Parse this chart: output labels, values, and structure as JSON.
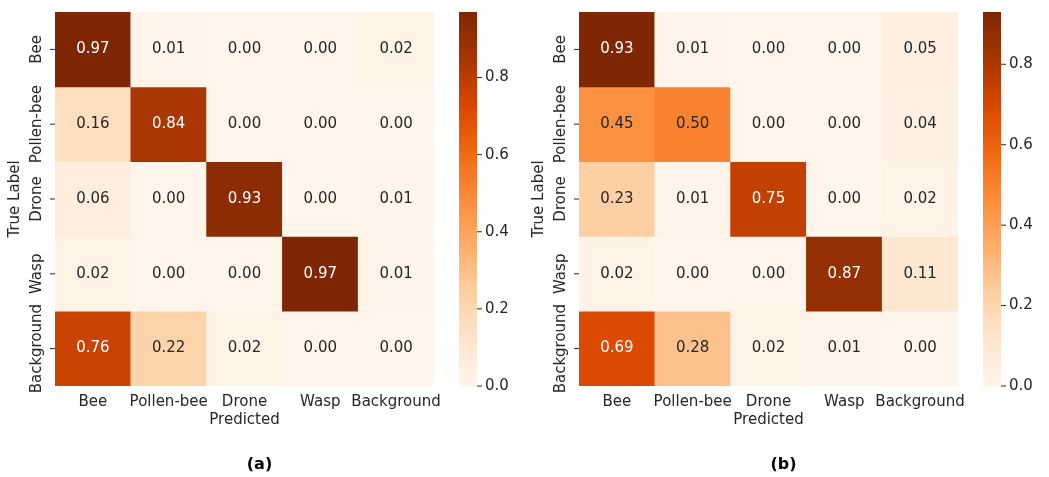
{
  "chart_data": [
    {
      "type": "heatmap",
      "xlabel": "Predicted",
      "ylabel": "True Label",
      "annotations": [
        "(a)"
      ],
      "categories": [
        "Bee",
        "Pollen-bee",
        "Drone",
        "Wasp",
        "Background"
      ],
      "y_categories": [
        "Bee",
        "Pollen-bee",
        "Drone",
        "Wasp",
        "Background"
      ],
      "cells": [
        [
          0.97,
          0.01,
          0,
          0,
          0.02
        ],
        [
          0.16,
          0.84,
          0,
          0,
          0
        ],
        [
          0.06,
          0,
          0.93,
          0,
          0.01
        ],
        [
          0.02,
          0,
          0,
          0.97,
          0.01
        ],
        [
          0.76,
          0.22,
          0.02,
          0,
          0
        ]
      ],
      "cell_labels": [
        [
          "0.97",
          "0.01",
          "0.00",
          "0.00",
          "0.02"
        ],
        [
          "0.16",
          "0.84",
          "0.00",
          "0.00",
          "0.00"
        ],
        [
          "0.06",
          "0.00",
          "0.93",
          "0.00",
          "0.01"
        ],
        [
          "0.02",
          "0.00",
          "0.00",
          "0.97",
          "0.01"
        ],
        [
          "0.76",
          "0.22",
          "0.02",
          "0.00",
          "0.00"
        ]
      ],
      "clim": [
        0,
        0.97
      ],
      "cticks": [
        {
          "value": 0,
          "label": "0.0"
        },
        0.2,
        0.4,
        0.6,
        0.8
      ]
    },
    {
      "type": "heatmap",
      "xlabel": "Predicted",
      "ylabel": "True Label",
      "annotations": [
        "(b)"
      ],
      "categories": [
        "Bee",
        "Pollen-bee",
        "Drone",
        "Wasp",
        "Background"
      ],
      "y_categories": [
        "Bee",
        "Pollen-bee",
        "Drone",
        "Wasp",
        "Background"
      ],
      "cells": [
        [
          0.93,
          0.01,
          0,
          0,
          0.05
        ],
        [
          0.45,
          0.5,
          0,
          0,
          0.04
        ],
        [
          0.23,
          0.01,
          0.75,
          0,
          0.02
        ],
        [
          0.02,
          0,
          0,
          0.87,
          0.11
        ],
        [
          0.69,
          0.28,
          0.02,
          0.01,
          0
        ]
      ],
      "cell_labels": [
        [
          "0.93",
          "0.01",
          "0.00",
          "0.00",
          "0.05"
        ],
        [
          "0.45",
          "0.50",
          "0.00",
          "0.00",
          "0.04"
        ],
        [
          "0.23",
          "0.01",
          "0.75",
          "0.00",
          "0.02"
        ],
        [
          "0.02",
          "0.00",
          "0.00",
          "0.87",
          "0.11"
        ],
        [
          "0.69",
          "0.28",
          "0.02",
          "0.01",
          "0.00"
        ]
      ],
      "clim": [
        0,
        0.93
      ],
      "cticks": [
        {
          "value": 0,
          "label": "0.0"
        },
        0.2,
        0.4,
        0.6,
        0.8
      ]
    }
  ]
}
